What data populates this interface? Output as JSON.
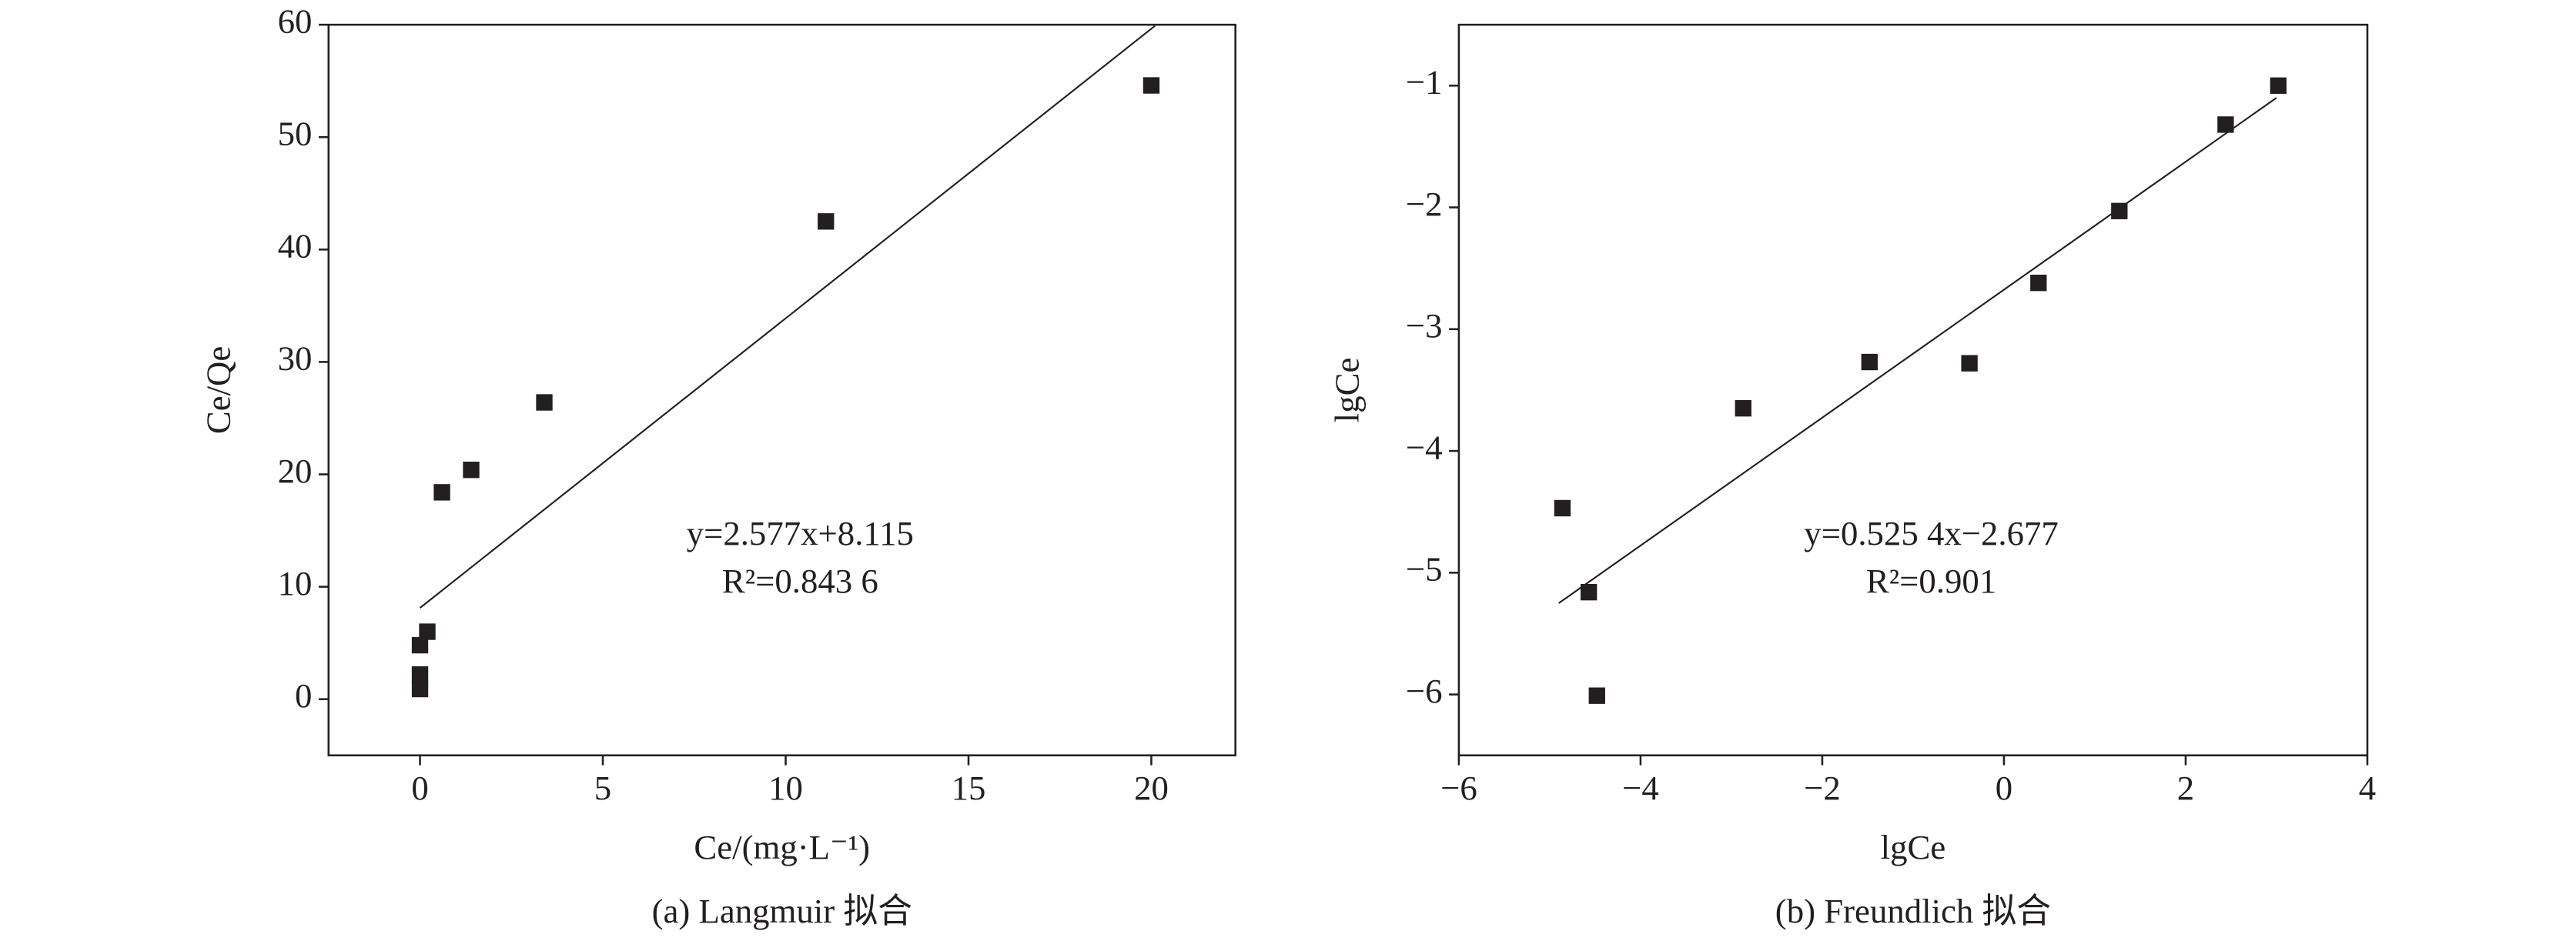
{
  "chart_data": [
    {
      "type": "scatter",
      "caption": "(a) Langmuir 拟合",
      "xlabel": "Ce/(mg·L⁻¹)",
      "ylabel": "Ce/Qe",
      "annotations": [
        "y=2.577x+8.115",
        "R²=0.843 6"
      ],
      "x": [
        0,
        0,
        0,
        0.2,
        0.6,
        1.4,
        3.4,
        11.1,
        20
      ],
      "values": [
        0.9,
        2.2,
        4.8,
        6.0,
        18.4,
        20.4,
        26.4,
        42.5,
        54.6
      ],
      "fit_line": {
        "x": [
          0,
          20.1
        ],
        "values": [
          8.115,
          59.9
        ]
      },
      "color": "#231f20",
      "xlim": [
        -2.5,
        22.3
      ],
      "ylim": [
        -5,
        60
      ],
      "xticks": [
        0,
        5,
        10,
        15,
        20
      ],
      "yticks": [
        0,
        10,
        20,
        30,
        40,
        50,
        60
      ]
    },
    {
      "type": "scatter",
      "caption": "(b) Freundlich 拟合",
      "xlabel": "lgCe",
      "ylabel": "lgCe",
      "annotations": [
        "y=0.525 4x−2.677",
        "R²=0.901"
      ],
      "x": [
        -4.86,
        -4.57,
        -4.48,
        -2.87,
        -1.48,
        -0.38,
        0.38,
        1.27,
        2.44,
        3.02
      ],
      "values": [
        -4.47,
        -5.16,
        -6.01,
        -3.65,
        -3.27,
        -3.28,
        -2.62,
        -2.03,
        -1.32,
        -1.0
      ],
      "fit_line": {
        "x": [
          -4.9,
          3.0
        ],
        "values": [
          -5.25,
          -1.1
        ]
      },
      "color": "#231f20",
      "xlim": [
        -6,
        4
      ],
      "ylim": [
        -6.5,
        -0.5
      ],
      "xticks": [
        {
          "value": -6,
          "label": "−6"
        },
        {
          "value": -4,
          "label": "−4"
        },
        {
          "value": -2,
          "label": "−2"
        },
        0,
        2,
        4
      ],
      "yticks": [
        {
          "value": -6,
          "label": "−6"
        },
        {
          "value": -5,
          "label": "−5"
        },
        {
          "value": -4,
          "label": "−4"
        },
        {
          "value": -3,
          "label": "−3"
        },
        {
          "value": -2,
          "label": "−2"
        },
        {
          "value": -1,
          "label": "−1"
        }
      ]
    }
  ]
}
